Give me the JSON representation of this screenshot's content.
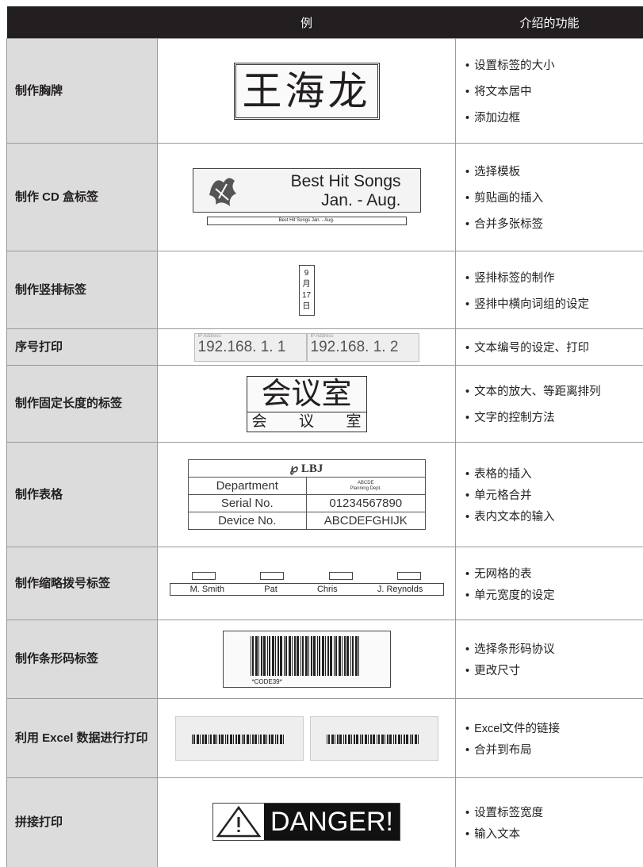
{
  "header": {
    "col1": "例",
    "col2": "介绍的功能"
  },
  "rows": [
    {
      "label": "制作胸牌",
      "example": [
        "王海龙"
      ],
      "features": [
        "设置标签的大小",
        "将文本居中",
        "添加边框"
      ]
    },
    {
      "label": "制作 CD 盒标签",
      "example": [
        "Best Hit Songs",
        "Jan. - Aug.",
        "Best Hit Songs Jan. - Aug."
      ],
      "features": [
        "选择模板",
        "剪贴画的插入",
        "合并多张标签"
      ]
    },
    {
      "label": "制作竖排标签",
      "example": [
        "9",
        "月",
        "17",
        "日"
      ],
      "features": [
        "竖排标签的制作",
        "竖排中横向词组的设定"
      ]
    },
    {
      "label": "序号打印",
      "example": [
        "IP Address",
        "192.168. 1. 1",
        "IP Address",
        "192.168. 1. 2"
      ],
      "features": [
        "文本编号的设定、打印"
      ]
    },
    {
      "label": "制作固定长度的标签",
      "example": [
        "会议室",
        "会",
        "议",
        "室"
      ],
      "features": [
        "文本的放大、等距离排列",
        "文字的控制方法"
      ]
    },
    {
      "label": "制作表格",
      "example": [
        "℘ LBJ",
        "Department",
        "ABCDE",
        "Planning Dept.",
        "Serial No.",
        "01234567890",
        "Device No.",
        "ABCDEFGHIJK"
      ],
      "features": [
        "表格的插入",
        "单元格合并",
        "表内文本的输入"
      ]
    },
    {
      "label": "制作缩略拨号标签",
      "example": [
        "M. Smith",
        "Pat",
        "Chris",
        "J. Reynolds"
      ],
      "features": [
        "无网格的表",
        "单元宽度的设定"
      ]
    },
    {
      "label": "制作条形码标签",
      "example": [
        "*CODE39*"
      ],
      "features": [
        "选择条形码协议",
        "更改尺寸"
      ]
    },
    {
      "label": "利用 Excel 数据进行打印",
      "example": [],
      "features": [
        "Excel文件的链接",
        "合并到布局"
      ]
    },
    {
      "label": "拼接打印",
      "example": [
        "DANGER!"
      ],
      "features": [
        "设置标签宽度",
        "输入文本"
      ]
    }
  ]
}
